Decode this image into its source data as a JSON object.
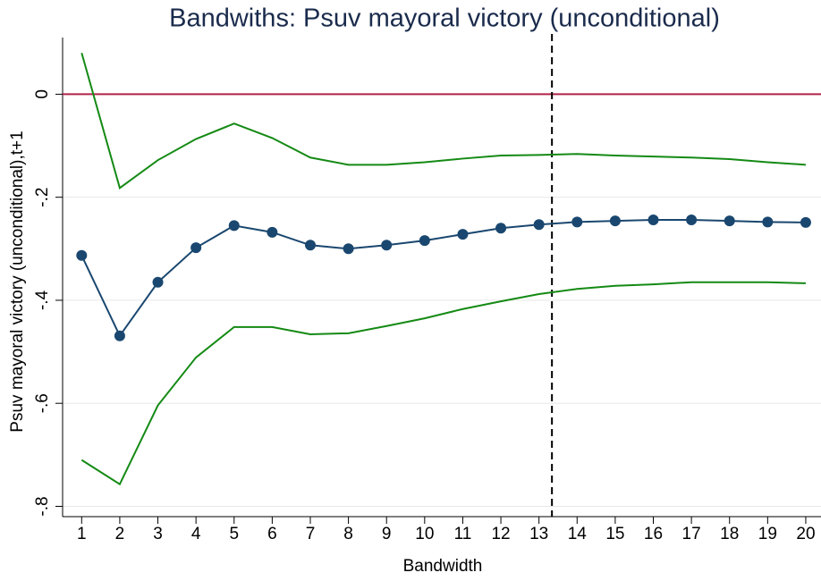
{
  "chart_data": {
    "type": "line",
    "title": "Bandwiths: Psuv mayoral victory (unconditional)",
    "x_label": "Bandwidth",
    "y_label": "Psuv mayoral victory (unconditional),t+1",
    "x": [
      1,
      2,
      3,
      4,
      5,
      6,
      7,
      8,
      9,
      10,
      11,
      12,
      13,
      14,
      15,
      16,
      17,
      18,
      19,
      20
    ],
    "series": [
      {
        "color": "#148a14",
        "values": [
          0.08,
          -0.182,
          -0.128,
          -0.087,
          -0.057,
          -0.085,
          -0.123,
          -0.137,
          -0.137,
          -0.132,
          -0.125,
          -0.119,
          -0.118,
          -0.116,
          -0.119,
          -0.121,
          -0.123,
          -0.126,
          -0.132,
          -0.137
        ]
      },
      {
        "color": "#1a476f",
        "markers": true,
        "values": [
          -0.313,
          -0.469,
          -0.365,
          -0.298,
          -0.255,
          -0.268,
          -0.293,
          -0.3,
          -0.293,
          -0.284,
          -0.272,
          -0.26,
          -0.253,
          -0.248,
          -0.246,
          -0.244,
          -0.244,
          -0.246,
          -0.248,
          -0.249
        ]
      },
      {
        "color": "#148a14",
        "values": [
          -0.71,
          -0.757,
          -0.604,
          -0.511,
          -0.452,
          -0.452,
          -0.466,
          -0.464,
          -0.45,
          -0.435,
          -0.417,
          -0.402,
          -0.388,
          -0.378,
          -0.372,
          -0.369,
          -0.365,
          -0.365,
          -0.365,
          -0.367
        ]
      }
    ],
    "hlines": [
      {
        "value": 0,
        "color": "#b22248"
      }
    ],
    "vlines": [
      {
        "value": 13.34,
        "color": "#000000",
        "dash": true
      }
    ],
    "xlim": [
      0.5,
      20.4
    ],
    "ylim": [
      -0.82,
      0.11
    ],
    "xticks": [
      1,
      2,
      3,
      4,
      5,
      6,
      7,
      8,
      9,
      10,
      11,
      12,
      13,
      14,
      15,
      16,
      17,
      18,
      19,
      20
    ],
    "yticks": [
      {
        "value": -0.8,
        "label": "-.8"
      },
      {
        "value": -0.6,
        "label": "-.6"
      },
      {
        "value": -0.4,
        "label": "-.4"
      },
      {
        "value": -0.2,
        "label": "-.2"
      },
      0
    ],
    "grid": true
  }
}
